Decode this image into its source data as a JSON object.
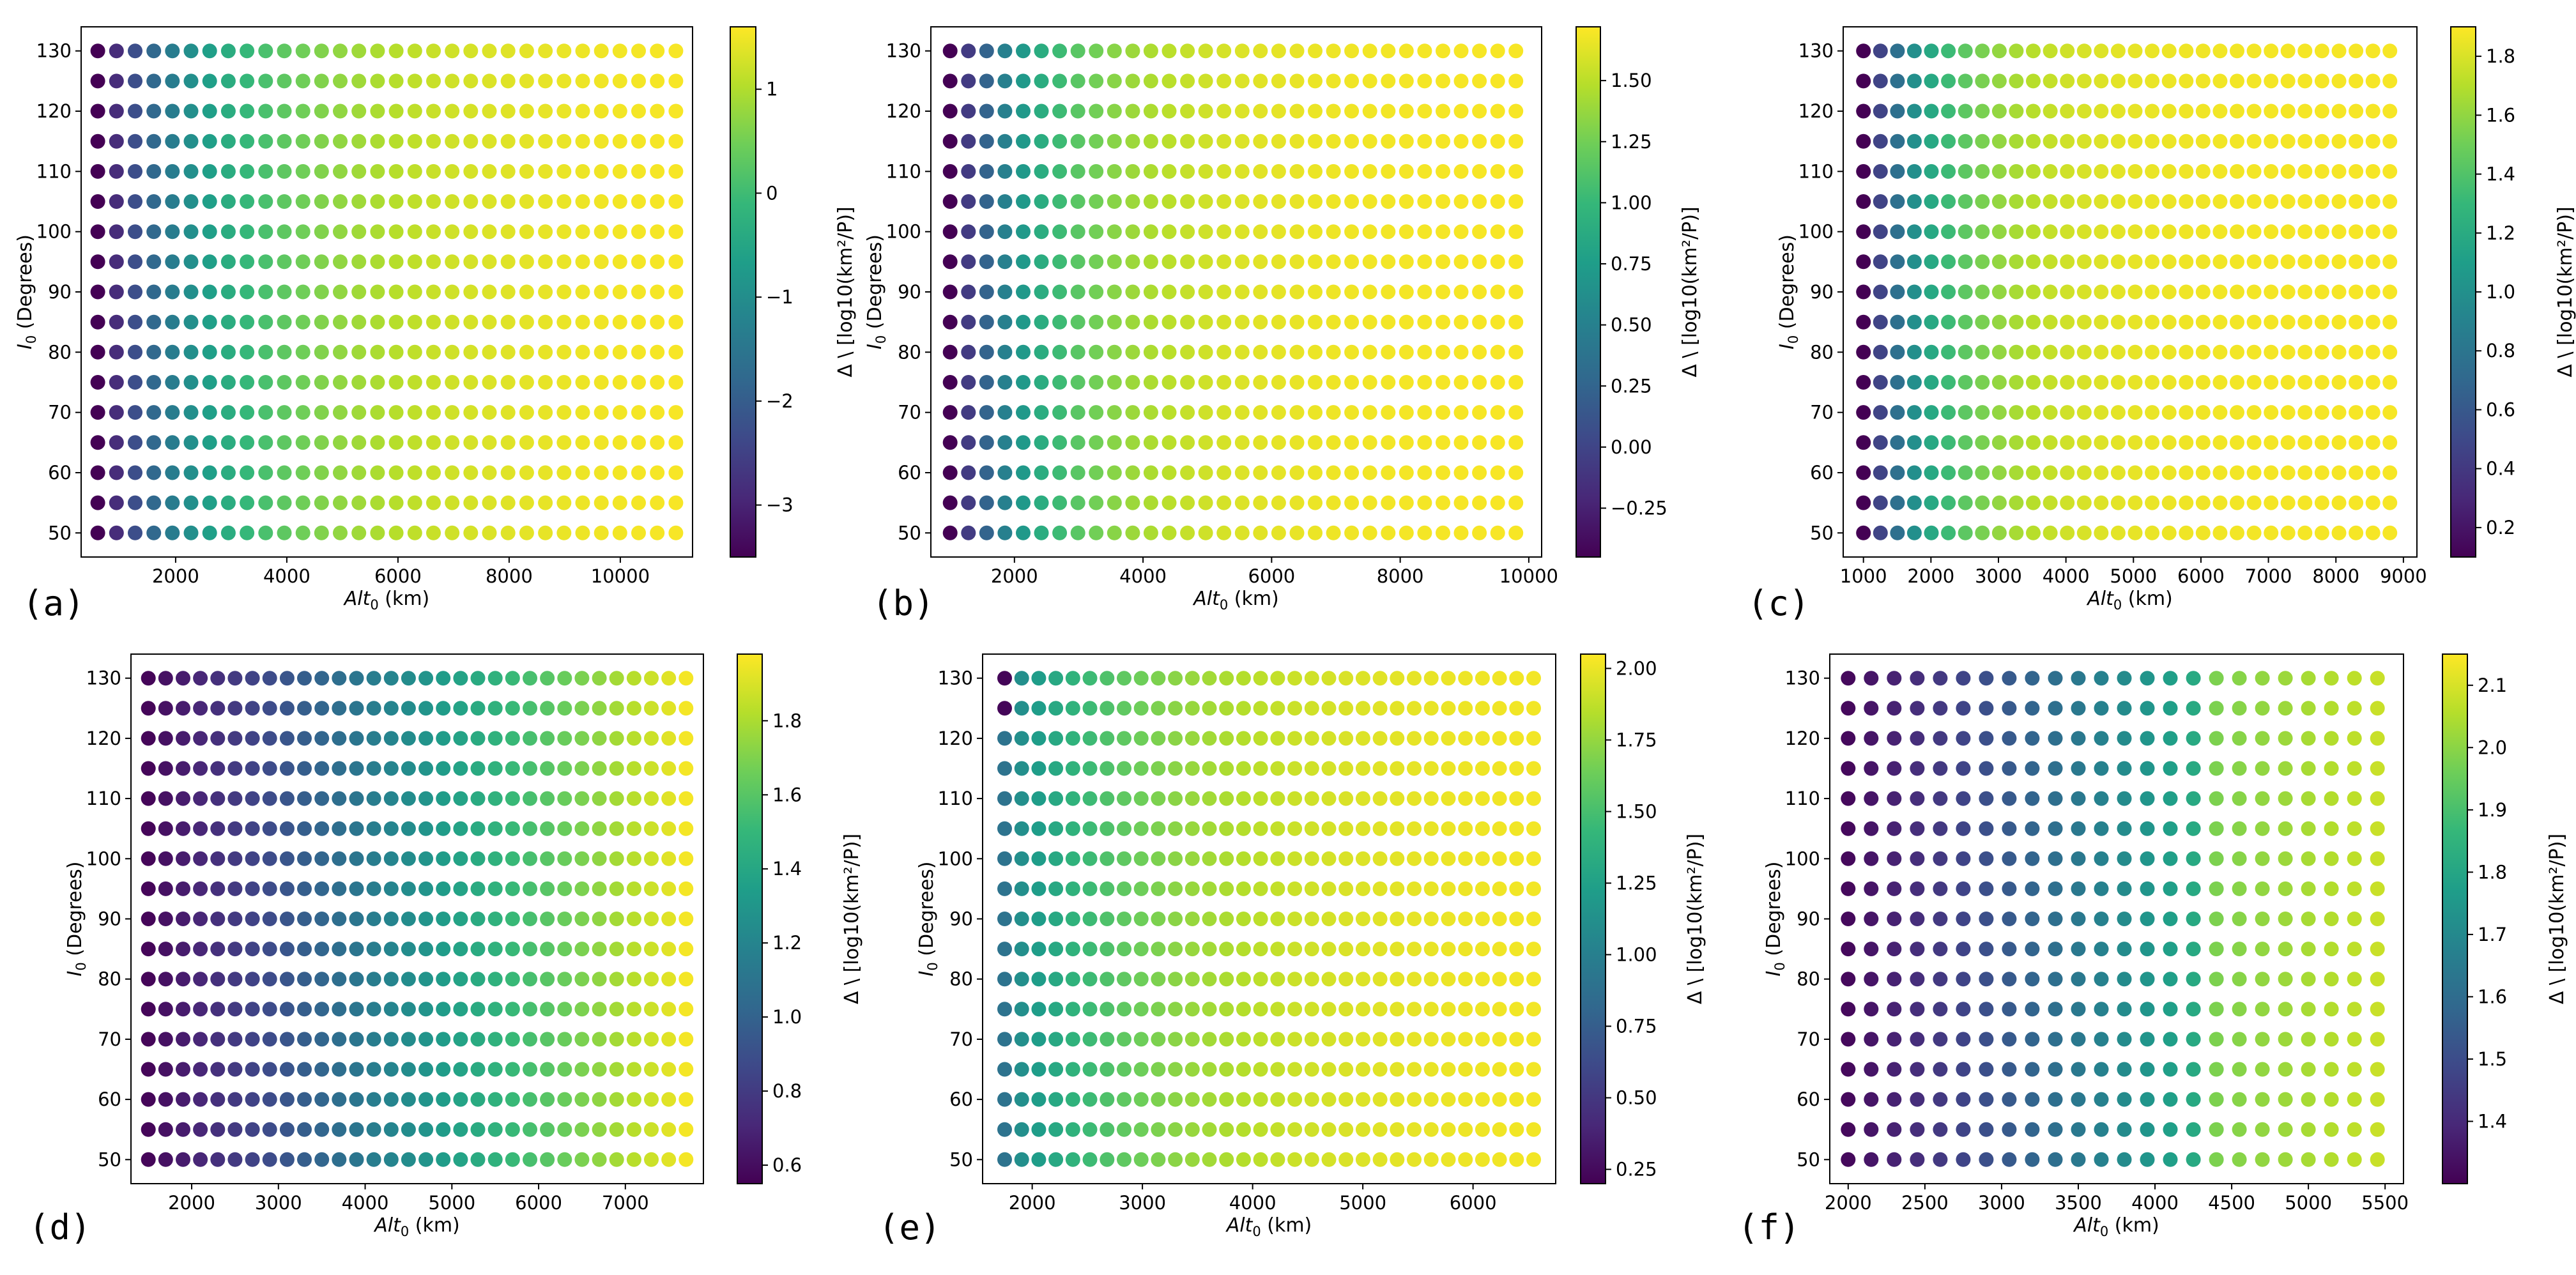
{
  "chart_data": [
    {
      "type": "scatter",
      "panel_label": "(a)",
      "xlabel": "Alt",
      "xlabel_sub": "0",
      "xlabel_unit": " (km)",
      "ylabel": "I",
      "ylabel_sub": "0",
      "ylabel_unit": " (Degrees)",
      "colorbar_label": "Δ \\ [log10(km²/P)]",
      "xlim": [
        300,
        11300
      ],
      "xticks": [
        2000,
        4000,
        6000,
        8000,
        10000
      ],
      "ylim": [
        46,
        134
      ],
      "yticks": [
        50,
        60,
        70,
        80,
        90,
        100,
        110,
        120,
        130
      ],
      "x_start": 600,
      "x_end": 11000,
      "n_points": 32,
      "y_values": [
        50,
        55,
        60,
        65,
        70,
        75,
        80,
        85,
        90,
        95,
        100,
        105,
        110,
        115,
        120,
        125,
        130
      ],
      "clim": [
        -3.5,
        1.6
      ],
      "cticks": [
        -3,
        -2,
        -1,
        0,
        1
      ],
      "ctick_labels": [
        "−3",
        "−2",
        "−1",
        "0",
        "1"
      ],
      "color_model": {
        "type": "log",
        "min": -3.5,
        "max": 1.55,
        "rate": 0.7
      }
    },
    {
      "type": "scatter",
      "panel_label": "(b)",
      "xlabel": "Alt",
      "xlabel_sub": "0",
      "xlabel_unit": " (km)",
      "ylabel": "I",
      "ylabel_sub": "0",
      "ylabel_unit": " (Degrees)",
      "colorbar_label": "Δ \\ [log10(km²/P)]",
      "xlim": [
        700,
        10200
      ],
      "xticks": [
        2000,
        4000,
        6000,
        8000,
        10000
      ],
      "ylim": [
        46,
        134
      ],
      "yticks": [
        50,
        60,
        70,
        80,
        90,
        100,
        110,
        120,
        130
      ],
      "x_start": 1000,
      "x_end": 9800,
      "n_points": 32,
      "y_values": [
        50,
        55,
        60,
        65,
        70,
        75,
        80,
        85,
        90,
        95,
        100,
        105,
        110,
        115,
        120,
        125,
        130
      ],
      "clim": [
        -0.45,
        1.72
      ],
      "cticks": [
        -0.25,
        0,
        0.25,
        0.5,
        0.75,
        1.0,
        1.25,
        1.5
      ],
      "ctick_labels": [
        "−0.25",
        "0.00",
        "0.25",
        "0.50",
        "0.75",
        "1.00",
        "1.25",
        "1.50"
      ],
      "color_model": {
        "type": "log",
        "min": -0.45,
        "max": 1.7,
        "rate": 1.0
      }
    },
    {
      "type": "scatter",
      "panel_label": "(c)",
      "xlabel": "Alt",
      "xlabel_sub": "0",
      "xlabel_unit": " (km)",
      "ylabel": "I",
      "ylabel_sub": "0",
      "ylabel_unit": " (Degrees)",
      "colorbar_label": "Δ \\ [log10(km²/P)]",
      "xlim": [
        700,
        9200
      ],
      "xticks": [
        1000,
        2000,
        3000,
        4000,
        5000,
        6000,
        7000,
        8000,
        9000
      ],
      "ylim": [
        46,
        134
      ],
      "yticks": [
        50,
        60,
        70,
        80,
        90,
        100,
        110,
        120,
        130
      ],
      "x_start": 1000,
      "x_end": 8800,
      "n_points": 32,
      "y_values": [
        50,
        55,
        60,
        65,
        70,
        75,
        80,
        85,
        90,
        95,
        100,
        105,
        110,
        115,
        120,
        125,
        130
      ],
      "clim": [
        0.1,
        1.9
      ],
      "cticks": [
        0.2,
        0.4,
        0.6,
        0.8,
        1.0,
        1.2,
        1.4,
        1.6,
        1.8
      ],
      "ctick_labels": [
        "0.2",
        "0.4",
        "0.6",
        "0.8",
        "1.0",
        "1.2",
        "1.4",
        "1.6",
        "1.8"
      ],
      "color_model": {
        "type": "log",
        "min": 0.1,
        "max": 1.88,
        "rate": 1.2
      }
    },
    {
      "type": "scatter",
      "panel_label": "(d)",
      "xlabel": "Alt",
      "xlabel_sub": "0",
      "xlabel_unit": " (km)",
      "ylabel": "I",
      "ylabel_sub": "0",
      "ylabel_unit": " (Degrees)",
      "colorbar_label": "Δ \\ [log10(km²/P)]",
      "xlim": [
        1300,
        7900
      ],
      "xticks": [
        2000,
        3000,
        4000,
        5000,
        6000,
        7000
      ],
      "ylim": [
        46,
        134
      ],
      "yticks": [
        50,
        60,
        70,
        80,
        90,
        100,
        110,
        120,
        130
      ],
      "x_start": 1500,
      "x_end": 7700,
      "n_points": 32,
      "y_values": [
        50,
        55,
        60,
        65,
        70,
        75,
        80,
        85,
        90,
        95,
        100,
        105,
        110,
        115,
        120,
        125,
        130
      ],
      "clim": [
        0.55,
        1.98
      ],
      "cticks": [
        0.6,
        0.8,
        1.0,
        1.2,
        1.4,
        1.6,
        1.8
      ],
      "ctick_labels": [
        "0.6",
        "0.8",
        "1.0",
        "1.2",
        "1.4",
        "1.6",
        "1.8"
      ],
      "color_model": {
        "type": "lin",
        "min": 0.57,
        "max": 1.96
      }
    },
    {
      "type": "scatter",
      "panel_label": "(e)",
      "xlabel": "Alt",
      "xlabel_sub": "0",
      "xlabel_unit": " (km)",
      "ylabel": "I",
      "ylabel_sub": "0",
      "ylabel_unit": " (Degrees)",
      "colorbar_label": "Δ \\ [log10(km²/P)]",
      "xlim": [
        1550,
        6750
      ],
      "xticks": [
        2000,
        3000,
        4000,
        5000,
        6000
      ],
      "ylim": [
        46,
        134
      ],
      "yticks": [
        50,
        60,
        70,
        80,
        90,
        100,
        110,
        120,
        130
      ],
      "x_start": 1750,
      "x_end": 6550,
      "n_points": 32,
      "y_values": [
        50,
        55,
        60,
        65,
        70,
        75,
        80,
        85,
        90,
        95,
        100,
        105,
        110,
        115,
        120,
        125,
        130
      ],
      "clim": [
        0.2,
        2.05
      ],
      "cticks": [
        0.25,
        0.5,
        0.75,
        1.0,
        1.25,
        1.5,
        1.75,
        2.0
      ],
      "ctick_labels": [
        "0.25",
        "0.50",
        "0.75",
        "1.00",
        "1.25",
        "1.50",
        "1.75",
        "2.00"
      ],
      "color_model": {
        "type": "log",
        "min": 1.0,
        "max": 2.02,
        "rate": 0.6,
        "low_start": 0.22
      }
    },
    {
      "type": "scatter",
      "panel_label": "(f)",
      "xlabel": "Alt",
      "xlabel_sub": "0",
      "xlabel_unit": " (km)",
      "ylabel": "I",
      "ylabel_sub": "0",
      "ylabel_unit": " (Degrees)",
      "colorbar_label": "Δ \\ [log10(km²/P)]",
      "xlim": [
        1880,
        5620
      ],
      "xticks": [
        2000,
        2500,
        3000,
        3500,
        4000,
        4500,
        5000,
        5500
      ],
      "ylim": [
        46,
        134
      ],
      "yticks": [
        50,
        60,
        70,
        80,
        90,
        100,
        110,
        120,
        130
      ],
      "x_start": 2000,
      "x_end": 5450,
      "n_points": 24,
      "y_values": [
        50,
        55,
        60,
        65,
        70,
        75,
        80,
        85,
        90,
        95,
        100,
        105,
        110,
        115,
        120,
        125,
        130
      ],
      "clim": [
        1.3,
        2.15
      ],
      "cticks": [
        1.4,
        1.5,
        1.6,
        1.7,
        1.8,
        1.9,
        2.0,
        2.1
      ],
      "ctick_labels": [
        "1.4",
        "1.5",
        "1.6",
        "1.7",
        "1.8",
        "1.9",
        "2.0",
        "2.1"
      ],
      "color_model": {
        "type": "step",
        "min": 1.32,
        "mid": 1.85,
        "jump_x": 4400,
        "high_lo": 1.98,
        "high_hi": 2.08
      }
    }
  ]
}
